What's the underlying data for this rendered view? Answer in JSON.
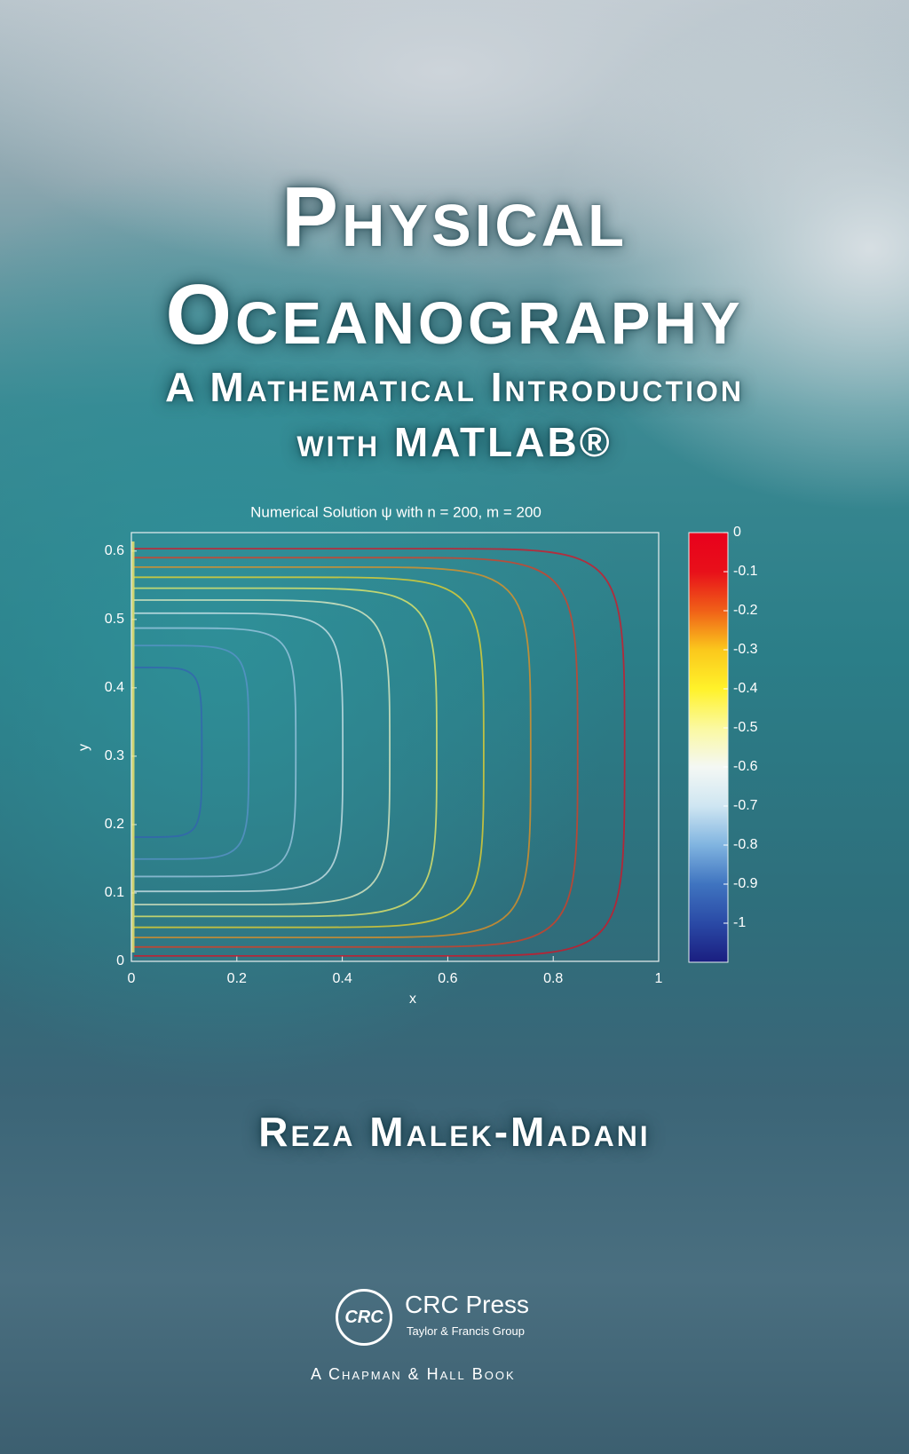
{
  "cover": {
    "title_lines": [
      "Physical",
      "Oceanography"
    ],
    "subtitle_lines": [
      "A Mathematical Introduction",
      "with MATLAB®"
    ],
    "author": "Reza Malek-Madani",
    "publisher": {
      "logo": "CRC",
      "name": "CRC Press",
      "group": "Taylor & Francis Group",
      "imprint": "A Chapman & Hall Book"
    }
  },
  "chart_data": {
    "type": "contour",
    "title": "Numerical Solution ψ with n = 200, m = 200",
    "x_label": "x",
    "y_label": "y",
    "xlim": [
      0,
      1
    ],
    "xticks": [
      0,
      0.2,
      0.4,
      0.6,
      0.8,
      1
    ],
    "ylim": [
      0,
      0.627
    ],
    "yticks": [
      0,
      0.1,
      0.2,
      0.3,
      0.4,
      0.5,
      0.6
    ],
    "levels": [
      -0.05,
      -0.15,
      -0.25,
      -0.35,
      -0.45,
      -0.55,
      -0.65,
      -0.75,
      -0.85,
      -0.95
    ],
    "clim": [
      -1.1,
      0
    ],
    "cticks": [
      0,
      -0.1,
      -0.2,
      -0.3,
      -0.4,
      -0.5,
      -0.6,
      -0.7,
      -0.8,
      -0.9,
      -1
    ],
    "colormap": [
      {
        "value": 0,
        "color": "#e8001c"
      },
      {
        "value": -0.1,
        "color": "#e8101a"
      },
      {
        "value": -0.2,
        "color": "#f06018"
      },
      {
        "value": -0.3,
        "color": "#fbc81c"
      },
      {
        "value": -0.4,
        "color": "#fff22a"
      },
      {
        "value": -0.5,
        "color": "#fbf9a0"
      },
      {
        "value": -0.6,
        "color": "#f4f8f4"
      },
      {
        "value": -0.7,
        "color": "#cfe6f2"
      },
      {
        "value": -0.8,
        "color": "#80b4e0"
      },
      {
        "value": -0.9,
        "color": "#3f74c0"
      },
      {
        "value": -1,
        "color": "#2a4aa6"
      },
      {
        "value": -1.1,
        "color": "#1a1e80"
      }
    ]
  }
}
